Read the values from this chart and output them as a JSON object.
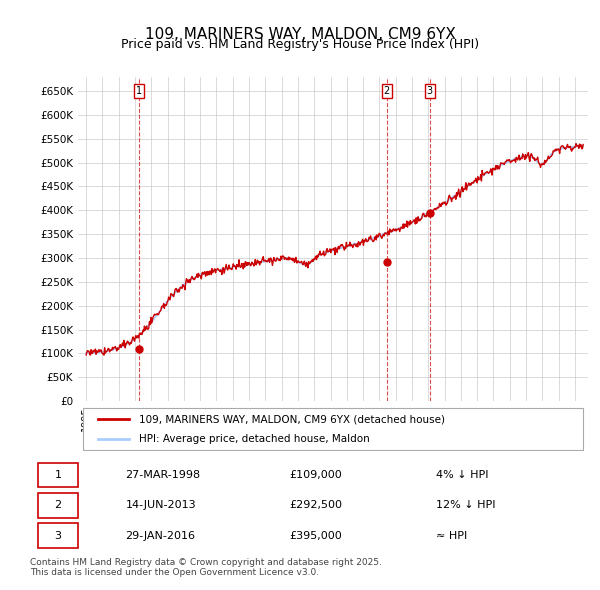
{
  "title1": "109, MARINERS WAY, MALDON, CM9 6YX",
  "title2": "Price paid vs. HM Land Registry's House Price Index (HPI)",
  "legend_property": "109, MARINERS WAY, MALDON, CM9 6YX (detached house)",
  "legend_hpi": "HPI: Average price, detached house, Maldon",
  "sale1_label": "1",
  "sale1_date": "27-MAR-1998",
  "sale1_price": "£109,000",
  "sale1_hpi": "4% ↓ HPI",
  "sale1_year": 1998.23,
  "sale1_value": 109000,
  "sale2_label": "2",
  "sale2_date": "14-JUN-2013",
  "sale2_price": "£292,500",
  "sale2_hpi": "12% ↓ HPI",
  "sale2_year": 2013.45,
  "sale2_value": 292500,
  "sale3_label": "3",
  "sale3_date": "29-JAN-2016",
  "sale3_price": "£395,000",
  "sale3_hpi": "≈ HPI",
  "sale3_year": 2016.08,
  "sale3_value": 395000,
  "ylim": [
    0,
    680000
  ],
  "yticks": [
    0,
    50000,
    100000,
    150000,
    200000,
    250000,
    300000,
    350000,
    400000,
    450000,
    500000,
    550000,
    600000,
    650000
  ],
  "color_property": "#cc0000",
  "color_hpi": "#aaccff",
  "color_grid": "#cccccc",
  "color_sale_marker": "#cc0000",
  "footer": "Contains HM Land Registry data © Crown copyright and database right 2025.\nThis data is licensed under the Open Government Licence v3.0.",
  "background_color": "#ffffff"
}
